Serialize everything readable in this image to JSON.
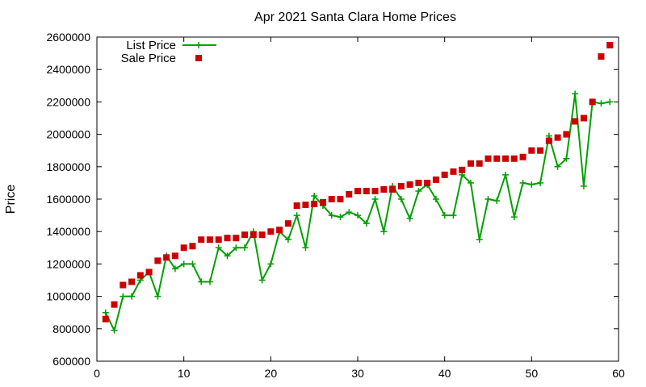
{
  "chart_data": {
    "type": "line",
    "title": "Apr 2021 Santa Clara Home Prices",
    "xlabel": "",
    "ylabel": "Price",
    "xlim": [
      0,
      60
    ],
    "ylim": [
      600000,
      2600000
    ],
    "x_ticks": [
      0,
      10,
      20,
      30,
      40,
      50,
      60
    ],
    "y_ticks": [
      600000,
      800000,
      1000000,
      1200000,
      1400000,
      1600000,
      1800000,
      2000000,
      2200000,
      2400000,
      2600000
    ],
    "grid": false,
    "legend_position": "top-left",
    "colors": {
      "list_price": "#00a000",
      "sale_price": "#cc0000"
    },
    "series": [
      {
        "name": "List Price",
        "style": "line-plus",
        "points": [
          [
            1,
            900000
          ],
          [
            2,
            790000
          ],
          [
            3,
            1000000
          ],
          [
            4,
            1000000
          ],
          [
            5,
            1100000
          ],
          [
            6,
            1150000
          ],
          [
            7,
            1000000
          ],
          [
            8,
            1250000
          ],
          [
            9,
            1170000
          ],
          [
            10,
            1200000
          ],
          [
            11,
            1200000
          ],
          [
            12,
            1090000
          ],
          [
            13,
            1090000
          ],
          [
            14,
            1300000
          ],
          [
            15,
            1250000
          ],
          [
            16,
            1300000
          ],
          [
            17,
            1300000
          ],
          [
            18,
            1400000
          ],
          [
            19,
            1100000
          ],
          [
            20,
            1200000
          ],
          [
            21,
            1400000
          ],
          [
            22,
            1350000
          ],
          [
            23,
            1500000
          ],
          [
            24,
            1300000
          ],
          [
            25,
            1620000
          ],
          [
            26,
            1560000
          ],
          [
            27,
            1500000
          ],
          [
            28,
            1490000
          ],
          [
            29,
            1520000
          ],
          [
            30,
            1500000
          ],
          [
            31,
            1450000
          ],
          [
            32,
            1600000
          ],
          [
            33,
            1400000
          ],
          [
            34,
            1680000
          ],
          [
            35,
            1600000
          ],
          [
            36,
            1480000
          ],
          [
            37,
            1650000
          ],
          [
            38,
            1690000
          ],
          [
            39,
            1600000
          ],
          [
            40,
            1500000
          ],
          [
            41,
            1500000
          ],
          [
            42,
            1750000
          ],
          [
            43,
            1700000
          ],
          [
            44,
            1350000
          ],
          [
            45,
            1600000
          ],
          [
            46,
            1590000
          ],
          [
            47,
            1750000
          ],
          [
            48,
            1490000
          ],
          [
            49,
            1700000
          ],
          [
            50,
            1690000
          ],
          [
            51,
            1700000
          ],
          [
            52,
            1990000
          ],
          [
            53,
            1800000
          ],
          [
            54,
            1850000
          ],
          [
            55,
            2250000
          ],
          [
            56,
            1680000
          ],
          [
            57,
            2200000
          ],
          [
            58,
            2190000
          ],
          [
            59,
            2200000
          ]
        ]
      },
      {
        "name": "Sale Price",
        "style": "square-points",
        "points": [
          [
            1,
            860000
          ],
          [
            2,
            950000
          ],
          [
            3,
            1070000
          ],
          [
            4,
            1090000
          ],
          [
            5,
            1130000
          ],
          [
            6,
            1150000
          ],
          [
            7,
            1220000
          ],
          [
            8,
            1240000
          ],
          [
            9,
            1250000
          ],
          [
            10,
            1300000
          ],
          [
            11,
            1310000
          ],
          [
            12,
            1350000
          ],
          [
            13,
            1350000
          ],
          [
            14,
            1350000
          ],
          [
            15,
            1360000
          ],
          [
            16,
            1360000
          ],
          [
            17,
            1380000
          ],
          [
            18,
            1380000
          ],
          [
            19,
            1380000
          ],
          [
            20,
            1400000
          ],
          [
            21,
            1410000
          ],
          [
            22,
            1450000
          ],
          [
            23,
            1560000
          ],
          [
            24,
            1565000
          ],
          [
            25,
            1570000
          ],
          [
            26,
            1580000
          ],
          [
            27,
            1600000
          ],
          [
            28,
            1600000
          ],
          [
            29,
            1630000
          ],
          [
            30,
            1650000
          ],
          [
            31,
            1650000
          ],
          [
            32,
            1650000
          ],
          [
            33,
            1660000
          ],
          [
            34,
            1660000
          ],
          [
            35,
            1680000
          ],
          [
            36,
            1690000
          ],
          [
            37,
            1700000
          ],
          [
            38,
            1700000
          ],
          [
            39,
            1720000
          ],
          [
            40,
            1750000
          ],
          [
            41,
            1770000
          ],
          [
            42,
            1780000
          ],
          [
            43,
            1820000
          ],
          [
            44,
            1820000
          ],
          [
            45,
            1850000
          ],
          [
            46,
            1850000
          ],
          [
            47,
            1850000
          ],
          [
            48,
            1850000
          ],
          [
            49,
            1860000
          ],
          [
            50,
            1900000
          ],
          [
            51,
            1900000
          ],
          [
            52,
            1960000
          ],
          [
            53,
            1980000
          ],
          [
            54,
            2000000
          ],
          [
            55,
            2080000
          ],
          [
            56,
            2100000
          ],
          [
            57,
            2200000
          ],
          [
            58,
            2480000
          ],
          [
            59,
            2550000
          ]
        ]
      }
    ]
  }
}
